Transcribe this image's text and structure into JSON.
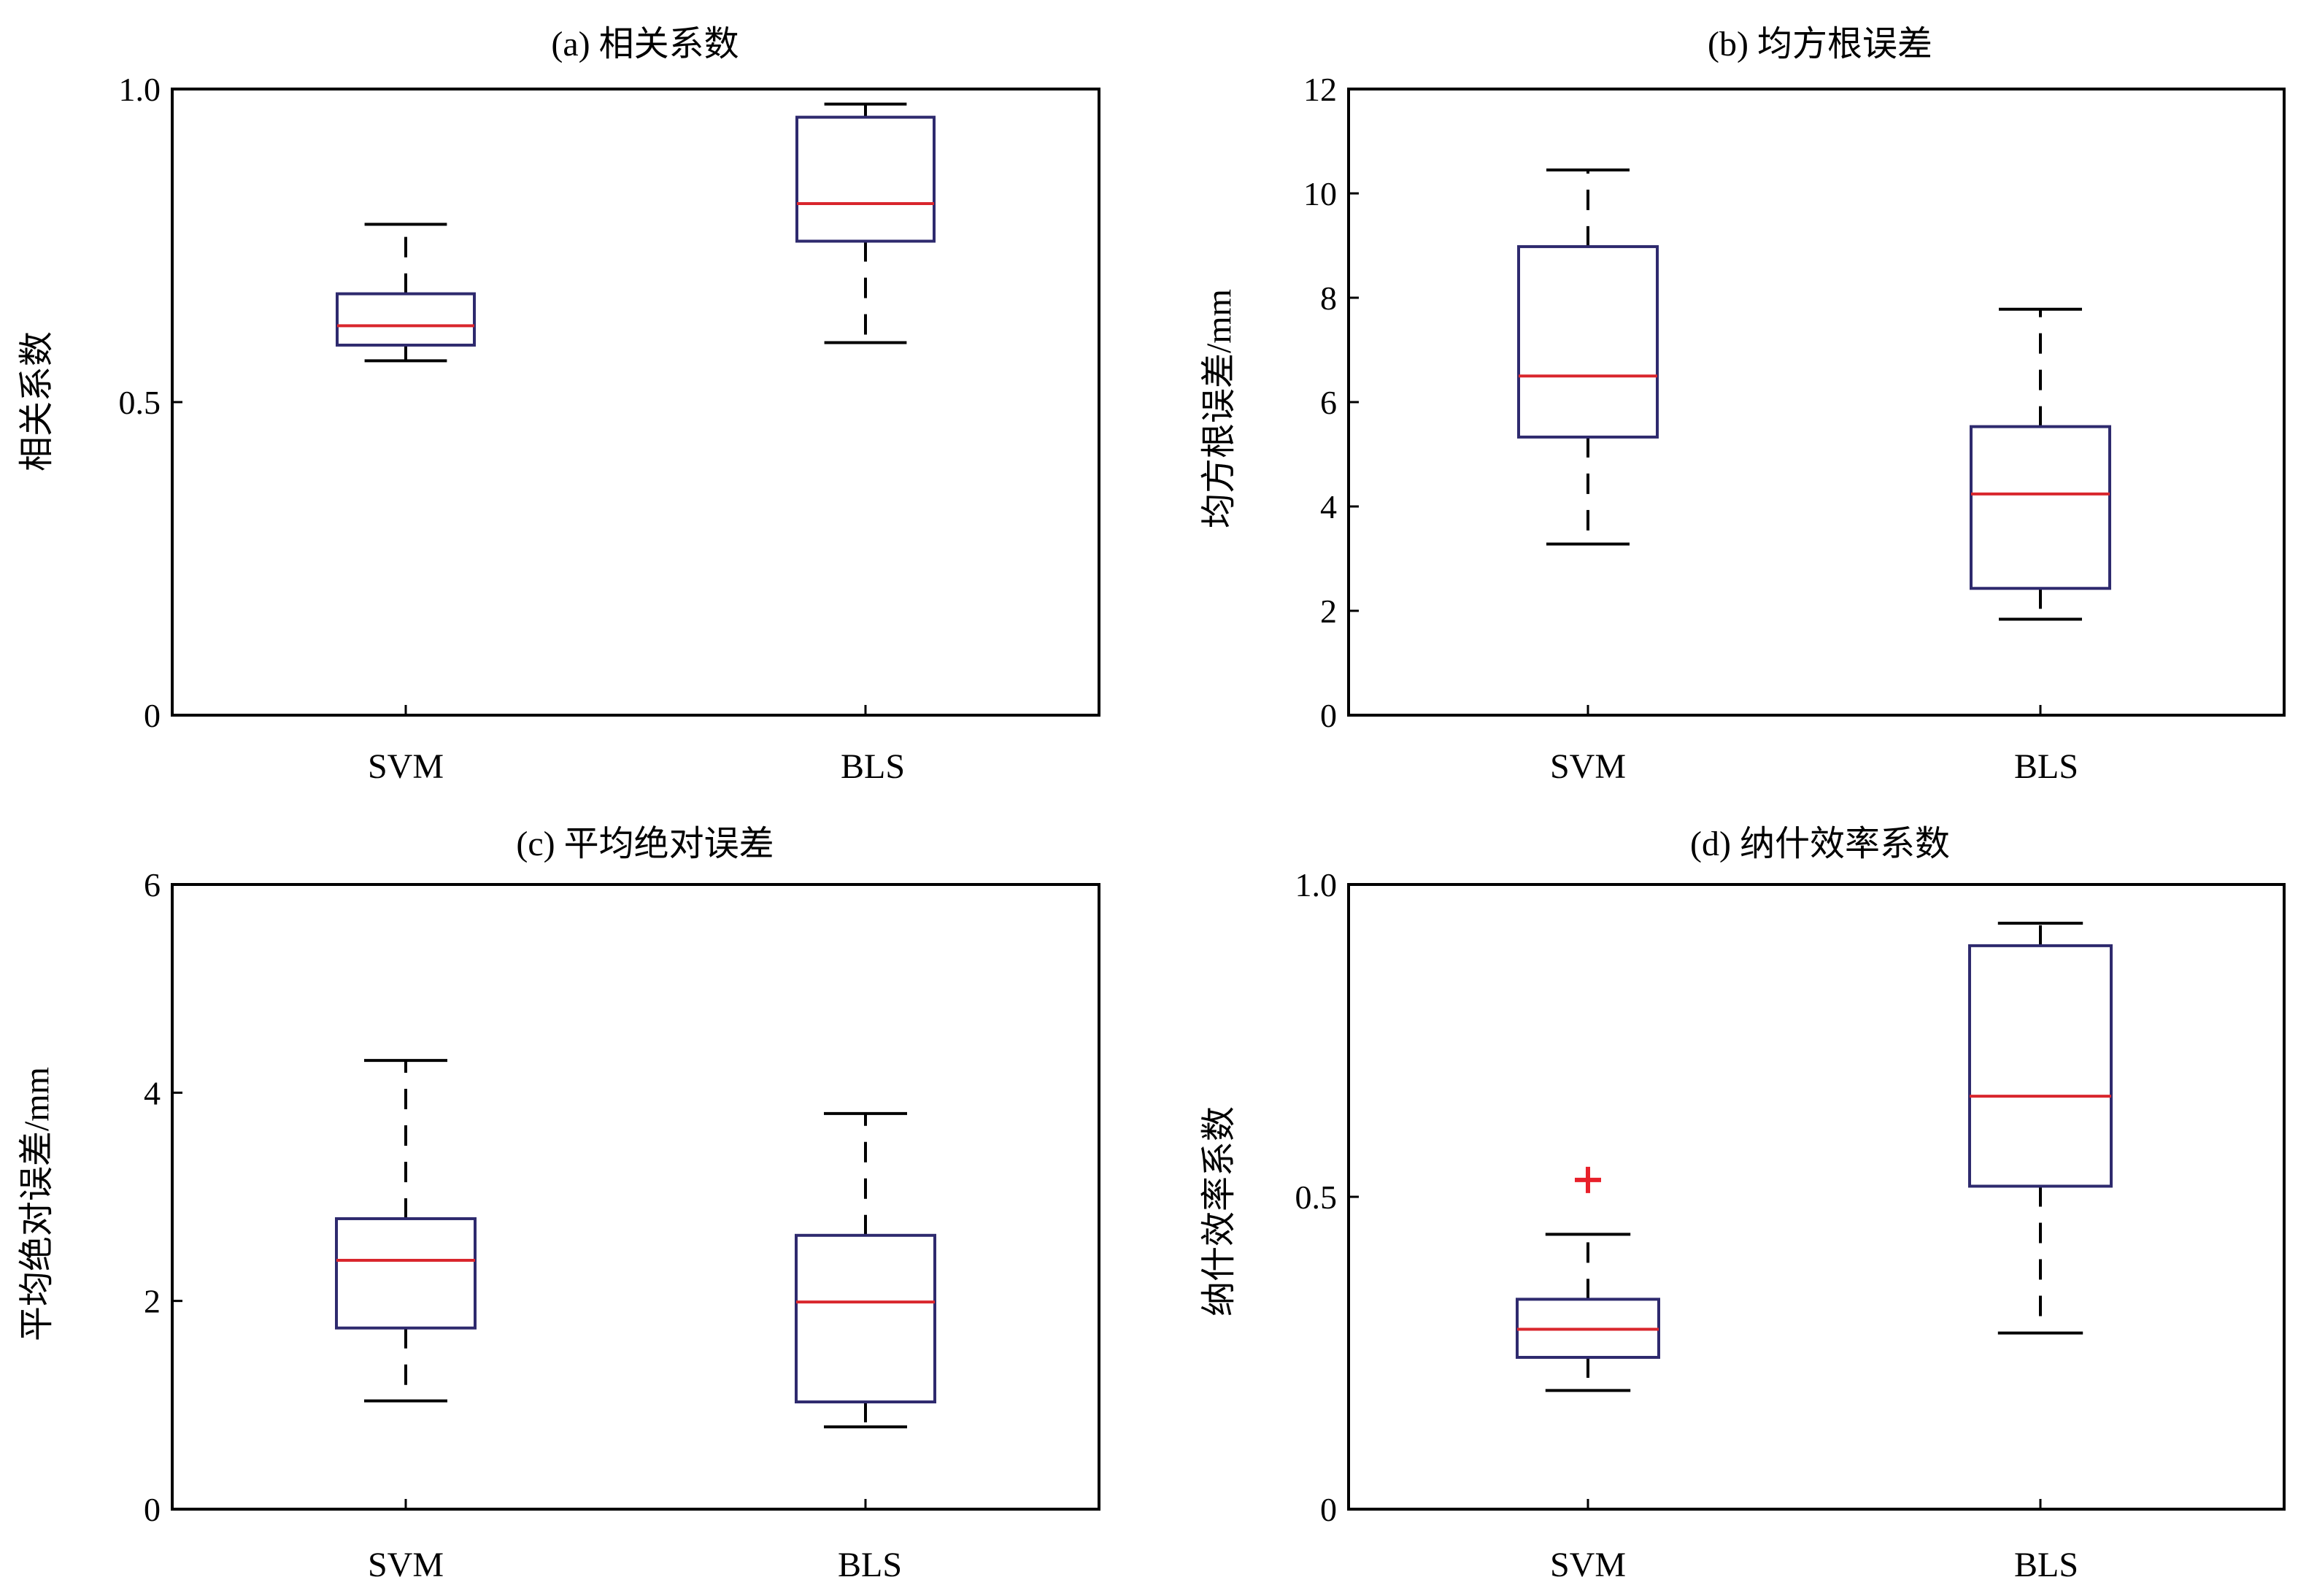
{
  "colors": {
    "box": "#2e2a6e",
    "median": "#d9262d",
    "whisker": "#000000",
    "outlier": "#e8202a",
    "axes": "#000000"
  },
  "chart_data": [
    {
      "type": "box",
      "title": "(a) 相关系数",
      "xlabel": "",
      "ylabel": "相关系数",
      "ylim": [
        0,
        1.0
      ],
      "yticks": [
        0,
        0.5,
        1.0
      ],
      "ytick_labels": [
        "0",
        "0.5",
        "1.0"
      ],
      "grid": false,
      "categories": [
        "SVM",
        "BLS"
      ],
      "boxes": [
        {
          "name": "SVM",
          "min": 0.566,
          "q1": 0.591,
          "median": 0.622,
          "q3": 0.673,
          "max": 0.784,
          "outliers": []
        },
        {
          "name": "BLS",
          "min": 0.595,
          "q1": 0.757,
          "median": 0.817,
          "q3": 0.955,
          "max": 0.976,
          "outliers": []
        }
      ]
    },
    {
      "type": "box",
      "title": "(b) 均方根误差",
      "xlabel": "",
      "ylabel": "均方根误差/mm",
      "ylim": [
        0,
        12
      ],
      "yticks": [
        0,
        2,
        4,
        6,
        8,
        10,
        12
      ],
      "ytick_labels": [
        "0",
        "2",
        "4",
        "6",
        "8",
        "10",
        "12"
      ],
      "grid": false,
      "categories": [
        "SVM",
        "BLS"
      ],
      "boxes": [
        {
          "name": "SVM",
          "min": 3.28,
          "q1": 5.33,
          "median": 6.5,
          "q3": 8.98,
          "max": 10.45,
          "outliers": []
        },
        {
          "name": "BLS",
          "min": 1.84,
          "q1": 2.43,
          "median": 4.24,
          "q3": 5.53,
          "max": 7.78,
          "outliers": []
        }
      ]
    },
    {
      "type": "box",
      "title": "(c) 平均绝对误差",
      "xlabel": "",
      "ylabel": "平均绝对误差/mm",
      "ylim": [
        0,
        6
      ],
      "yticks": [
        0,
        2,
        4,
        6
      ],
      "ytick_labels": [
        "0",
        "2",
        "4",
        "6"
      ],
      "grid": false,
      "categories": [
        "SVM",
        "BLS"
      ],
      "boxes": [
        {
          "name": "SVM",
          "min": 1.04,
          "q1": 1.74,
          "median": 2.39,
          "q3": 2.79,
          "max": 4.31,
          "outliers": []
        },
        {
          "name": "BLS",
          "min": 0.79,
          "q1": 1.03,
          "median": 1.99,
          "q3": 2.63,
          "max": 3.8,
          "outliers": []
        }
      ]
    },
    {
      "type": "box",
      "title": "(d) 纳什效率系数",
      "xlabel": "",
      "ylabel": "纳什效率系数",
      "ylim": [
        0,
        1.0
      ],
      "yticks": [
        0,
        0.5,
        1.0
      ],
      "ytick_labels": [
        "0",
        "0.5",
        "1.0"
      ],
      "grid": false,
      "categories": [
        "SVM",
        "BLS"
      ],
      "boxes": [
        {
          "name": "SVM",
          "min": 0.19,
          "q1": 0.243,
          "median": 0.288,
          "q3": 0.336,
          "max": 0.44,
          "outliers": [
            0.527
          ]
        },
        {
          "name": "BLS",
          "min": 0.282,
          "q1": 0.517,
          "median": 0.661,
          "q3": 0.902,
          "max": 0.938,
          "outliers": []
        }
      ]
    }
  ]
}
